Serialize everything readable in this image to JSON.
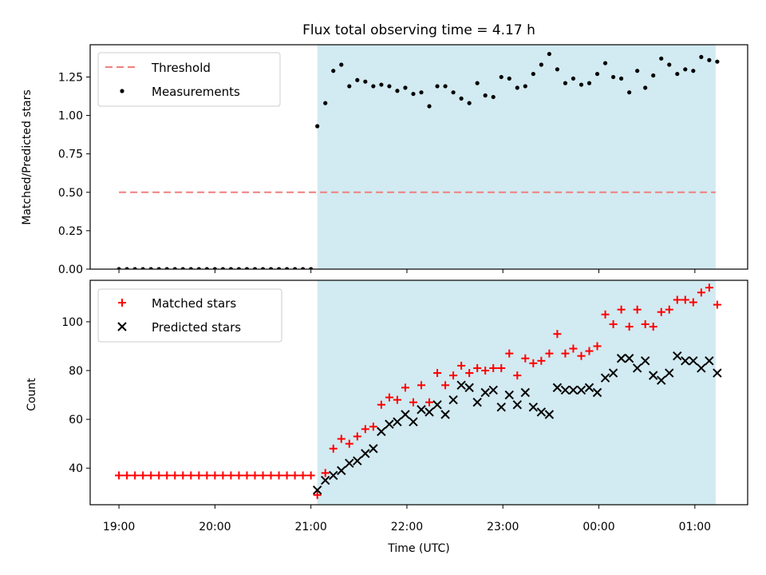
{
  "title": "Flux total observing time = 4.17 h",
  "colors": {
    "shade": "#add8e6",
    "threshold": "#f07f7f",
    "measurements": "#000000",
    "matched": "#ff0000",
    "predicted": "#000000",
    "axes": "#000000"
  },
  "chart_data": [
    {
      "type": "scatter",
      "panel": "top",
      "ylabel": "Matched/Predicted stars",
      "xlim_hours": [
        18.7,
        25.55
      ],
      "ylim": [
        0,
        1.46
      ],
      "yticks": [
        0.0,
        0.25,
        0.5,
        0.75,
        1.0,
        1.25
      ],
      "ytick_labels": [
        "0.00",
        "0.25",
        "0.50",
        "0.75",
        "1.00",
        "1.25"
      ],
      "shaded_span": [
        "21:04",
        "25:13"
      ],
      "threshold": {
        "name": "Threshold",
        "y": 0.5,
        "x_range": [
          "19:00",
          "25:13"
        ],
        "style": "dashed"
      },
      "legend": {
        "position": "upper left",
        "entries": [
          "Threshold",
          "Measurements"
        ]
      },
      "series": [
        {
          "name": "Measurements",
          "marker": "dot",
          "x": [
            "19:00",
            "19:05",
            "19:10",
            "19:15",
            "19:20",
            "19:25",
            "19:30",
            "19:35",
            "19:40",
            "19:45",
            "19:50",
            "19:55",
            "20:00",
            "20:05",
            "20:10",
            "20:15",
            "20:20",
            "20:25",
            "20:30",
            "20:35",
            "20:40",
            "20:45",
            "20:50",
            "20:55",
            "21:00",
            "21:04",
            "21:09",
            "21:14",
            "21:19",
            "21:24",
            "21:29",
            "21:34",
            "21:39",
            "21:44",
            "21:49",
            "21:54",
            "21:59",
            "22:04",
            "22:09",
            "22:14",
            "22:19",
            "22:24",
            "22:29",
            "22:34",
            "22:39",
            "22:44",
            "22:49",
            "22:54",
            "22:59",
            "23:04",
            "23:09",
            "23:14",
            "23:19",
            "23:24",
            "23:29",
            "23:34",
            "23:39",
            "23:44",
            "23:49",
            "23:54",
            "23:59",
            "24:04",
            "24:09",
            "24:14",
            "24:19",
            "24:24",
            "24:29",
            "24:34",
            "24:39",
            "24:44",
            "24:49",
            "24:54",
            "24:59",
            "25:04",
            "25:09",
            "25:14"
          ],
          "y": [
            0,
            0,
            0,
            0,
            0,
            0,
            0,
            0,
            0,
            0,
            0,
            0,
            0,
            0,
            0,
            0,
            0,
            0,
            0,
            0,
            0,
            0,
            0,
            0,
            0,
            0.93,
            1.08,
            1.29,
            1.33,
            1.19,
            1.23,
            1.22,
            1.19,
            1.2,
            1.19,
            1.16,
            1.18,
            1.14,
            1.15,
            1.06,
            1.19,
            1.19,
            1.15,
            1.11,
            1.08,
            1.21,
            1.13,
            1.12,
            1.25,
            1.24,
            1.18,
            1.19,
            1.27,
            1.33,
            1.4,
            1.3,
            1.21,
            1.24,
            1.2,
            1.21,
            1.27,
            1.34,
            1.25,
            1.24,
            1.15,
            1.29,
            1.18,
            1.26,
            1.37,
            1.33,
            1.27,
            1.3,
            1.29,
            1.38,
            1.36,
            1.35
          ]
        }
      ]
    },
    {
      "type": "scatter",
      "panel": "bottom",
      "ylabel": "Count",
      "xlabel": "Time (UTC)",
      "xlim_hours": [
        18.7,
        25.55
      ],
      "ylim": [
        25,
        117
      ],
      "yticks": [
        40,
        60,
        80,
        100
      ],
      "ytick_labels": [
        "40",
        "60",
        "80",
        "100"
      ],
      "xticks": [
        "19:00",
        "20:00",
        "21:00",
        "22:00",
        "23:00",
        "00:00",
        "01:00"
      ],
      "shaded_span": [
        "21:04",
        "25:13"
      ],
      "legend": {
        "position": "upper left",
        "entries": [
          "Matched stars",
          "Predicted stars"
        ]
      },
      "series": [
        {
          "name": "Matched stars",
          "marker": "plus",
          "x": [
            "19:00",
            "19:05",
            "19:10",
            "19:15",
            "19:20",
            "19:25",
            "19:30",
            "19:35",
            "19:40",
            "19:45",
            "19:50",
            "19:55",
            "20:00",
            "20:05",
            "20:10",
            "20:15",
            "20:20",
            "20:25",
            "20:30",
            "20:35",
            "20:40",
            "20:45",
            "20:50",
            "20:55",
            "21:00",
            "21:04",
            "21:09",
            "21:14",
            "21:19",
            "21:24",
            "21:29",
            "21:34",
            "21:39",
            "21:44",
            "21:49",
            "21:54",
            "21:59",
            "22:04",
            "22:09",
            "22:14",
            "22:19",
            "22:24",
            "22:29",
            "22:34",
            "22:39",
            "22:44",
            "22:49",
            "22:54",
            "22:59",
            "23:04",
            "23:09",
            "23:14",
            "23:19",
            "23:24",
            "23:29",
            "23:34",
            "23:39",
            "23:44",
            "23:49",
            "23:54",
            "23:59",
            "24:04",
            "24:09",
            "24:14",
            "24:19",
            "24:24",
            "24:29",
            "24:34",
            "24:39",
            "24:44",
            "24:49",
            "24:54",
            "24:59",
            "25:04",
            "25:09",
            "25:14"
          ],
          "y": [
            37,
            37,
            37,
            37,
            37,
            37,
            37,
            37,
            37,
            37,
            37,
            37,
            37,
            37,
            37,
            37,
            37,
            37,
            37,
            37,
            37,
            37,
            37,
            37,
            37,
            29,
            38,
            48,
            52,
            50,
            53,
            56,
            57,
            66,
            69,
            68,
            73,
            67,
            74,
            67,
            79,
            74,
            78,
            82,
            79,
            81,
            80,
            81,
            81,
            87,
            78,
            85,
            83,
            84,
            87,
            95,
            87,
            89,
            86,
            88,
            90,
            103,
            99,
            105,
            98,
            105,
            99,
            98,
            104,
            105,
            109,
            109,
            108,
            112,
            114,
            107
          ]
        },
        {
          "name": "Predicted stars",
          "marker": "x",
          "x": [
            "21:04",
            "21:09",
            "21:14",
            "21:19",
            "21:24",
            "21:29",
            "21:34",
            "21:39",
            "21:44",
            "21:49",
            "21:54",
            "21:59",
            "22:04",
            "22:09",
            "22:14",
            "22:19",
            "22:24",
            "22:29",
            "22:34",
            "22:39",
            "22:44",
            "22:49",
            "22:54",
            "22:59",
            "23:04",
            "23:09",
            "23:14",
            "23:19",
            "23:24",
            "23:29",
            "23:34",
            "23:39",
            "23:44",
            "23:49",
            "23:54",
            "23:59",
            "24:04",
            "24:09",
            "24:14",
            "24:19",
            "24:24",
            "24:29",
            "24:34",
            "24:39",
            "24:44",
            "24:49",
            "24:54",
            "24:59",
            "25:04",
            "25:09",
            "25:14"
          ],
          "y": [
            31,
            35,
            37,
            39,
            42,
            43,
            46,
            48,
            55,
            58,
            59,
            62,
            59,
            64,
            63,
            66,
            62,
            68,
            74,
            73,
            67,
            71,
            72,
            65,
            70,
            66,
            71,
            65,
            63,
            62,
            73,
            72,
            72,
            72,
            73,
            71,
            77,
            79,
            85,
            85,
            81,
            84,
            78,
            76,
            79,
            86,
            84,
            84,
            81,
            84,
            79
          ]
        }
      ]
    }
  ]
}
